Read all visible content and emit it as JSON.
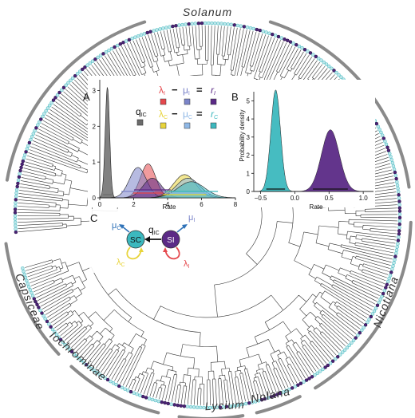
{
  "clades": {
    "solanum": "Solanum",
    "nicotiana": "Nicotiana",
    "nolana": "Nolana",
    "lycium": "Lycium",
    "iochrominae": "Iochrominae",
    "capsiceae": "Capsiceae"
  },
  "panels": {
    "a": "A",
    "b": "B",
    "c": "C"
  },
  "panel_a": {
    "xlabel": "Rate",
    "xticks": [
      "0",
      "2",
      "4",
      "6",
      "8"
    ],
    "yticks": [
      "0",
      "1",
      "2",
      "3"
    ],
    "q_label": "q",
    "q_sub": "IC",
    "eq1": {
      "lambda": "λ",
      "lambda_sub": "I",
      "minus": "−",
      "mu": "μ",
      "mu_sub": "I",
      "equals": "=",
      "r": "r",
      "r_sub": "I"
    },
    "eq2": {
      "lambda": "λ",
      "lambda_sub": "C",
      "minus": "−",
      "mu": "μ",
      "mu_sub": "C",
      "equals": "=",
      "r": "r",
      "r_sub": "C"
    },
    "colors": {
      "q": "#6b6b6b",
      "lambda_I": "#e5484d",
      "mu_I": "#7b84c9",
      "r_I": "#5b2a86",
      "lambda_C": "#e8d43b",
      "mu_C": "#8fb8e6",
      "r_C": "#3cb8be"
    }
  },
  "panel_b": {
    "xlabel": "Rate",
    "ylabel": "Probability density",
    "xticks": [
      "−0.5",
      "0.0",
      "0.5",
      "1.0"
    ],
    "yticks": [
      "0",
      "1",
      "2",
      "3",
      "4",
      "5"
    ],
    "colors": {
      "r_C": "#3cb8be",
      "r_I": "#5b2a86"
    }
  },
  "panel_c": {
    "sc_label": "SC",
    "si_label": "SI",
    "q_label": "q",
    "q_sub": "IC",
    "mu_c": "μ",
    "mu_c_sub": "C",
    "mu_i": "μ",
    "mu_i_sub": "I",
    "lambda_c": "λ",
    "lambda_c_sub": "C",
    "lambda_i": "λ",
    "lambda_i_sub": "I",
    "colors": {
      "sc": "#3cb8be",
      "si": "#5b2a86",
      "mu": "#2f72b8",
      "lambda_c": "#e8d43b",
      "lambda_i": "#e5484d"
    }
  },
  "chart_data": [
    {
      "type": "area",
      "panel": "A",
      "xlabel": "Rate",
      "xlim": [
        0,
        8
      ],
      "ylim": [
        0,
        3.3
      ],
      "series": [
        {
          "name": "q_IC",
          "mean": 0.45,
          "sd": 0.13,
          "peak": 3.1
        },
        {
          "name": "λ_I",
          "mean": 2.85,
          "sd": 0.45,
          "peak": 0.95
        },
        {
          "name": "μ_I",
          "mean": 2.25,
          "sd": 0.5,
          "peak": 0.85
        },
        {
          "name": "r_I",
          "mean": 3.1,
          "sd": 0.55,
          "peak": 0.55
        },
        {
          "name": "λ_C",
          "mean": 5.0,
          "sd": 0.65,
          "peak": 0.65
        },
        {
          "name": "μ_C",
          "mean": 5.2,
          "sd": 0.7,
          "peak": 0.55
        },
        {
          "name": "r_C",
          "mean": 5.4,
          "sd": 0.8,
          "peak": 0.45
        }
      ]
    },
    {
      "type": "area",
      "panel": "B",
      "xlabel": "Rate",
      "ylabel": "Probability density",
      "xlim": [
        -0.6,
        1.15
      ],
      "ylim": [
        0,
        5.5
      ],
      "series": [
        {
          "name": "r_C",
          "mean": -0.28,
          "sd": 0.07,
          "peak": 5.6
        },
        {
          "name": "r_I",
          "mean": 0.52,
          "sd": 0.13,
          "peak": 3.4
        }
      ]
    }
  ]
}
